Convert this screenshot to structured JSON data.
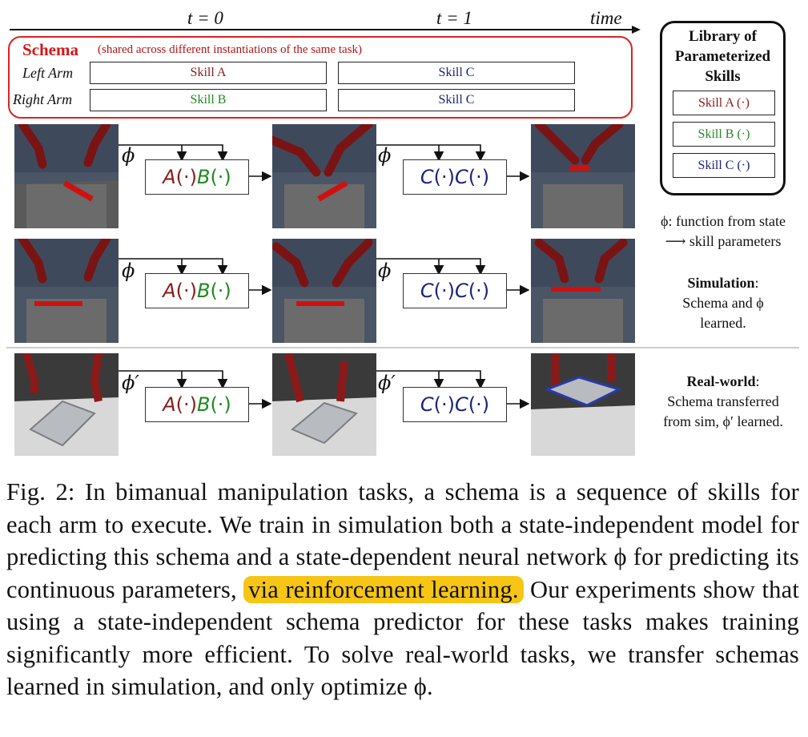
{
  "timeline": {
    "t0": "t = 0",
    "t1": "t = 1",
    "time": "time"
  },
  "schema": {
    "title": "Schema",
    "subtitle": "(shared across different instantiations of the same task)",
    "left_arm": "Left Arm",
    "right_arm": "Right Arm",
    "left_cells": [
      "Skill A",
      "Skill C"
    ],
    "right_cells": [
      "Skill B",
      "Skill C"
    ]
  },
  "library": {
    "title_lines": [
      "Library of",
      "Parameterized",
      "Skills"
    ],
    "items": [
      "Skill A (·)",
      "Skill B (·)",
      "Skill C (·)"
    ]
  },
  "rows": {
    "phi": "ϕ",
    "phi_prime": "ϕ′",
    "f_a": "A",
    "f_b": "B",
    "f_c": "C",
    "dot": "(·)"
  },
  "legend": {
    "phi_line1": "ϕ: function from state",
    "phi_line2": "⟶ skill parameters"
  },
  "simulation": {
    "title": "Simulation",
    "text_lines": [
      "Schema and ϕ",
      "learned."
    ]
  },
  "realworld": {
    "title": "Real-world",
    "text_lines": [
      "Schema transferred",
      "from sim, ϕ′ learned."
    ]
  },
  "caption": {
    "before": "Fig. 2: In bimanual manipulation tasks, a schema is a sequence of skills for each arm to execute. We train in simulation both a state-independent model for predicting this schema and a state-dependent neural network ϕ for predicting its continuous parameters,",
    "highlight": "via reinforcement learning.",
    "after": "Our experiments show that using a state-independent schema predictor for these tasks makes training significantly more efficient. To solve real-world tasks, we transfer schemas learned in simulation, and only optimize ϕ."
  },
  "colors": {
    "red": "#8b1a1a",
    "green": "#1f8a1f",
    "blue": "#1a237e",
    "schema_red": "#d01818",
    "highlight": "#f6c515"
  }
}
